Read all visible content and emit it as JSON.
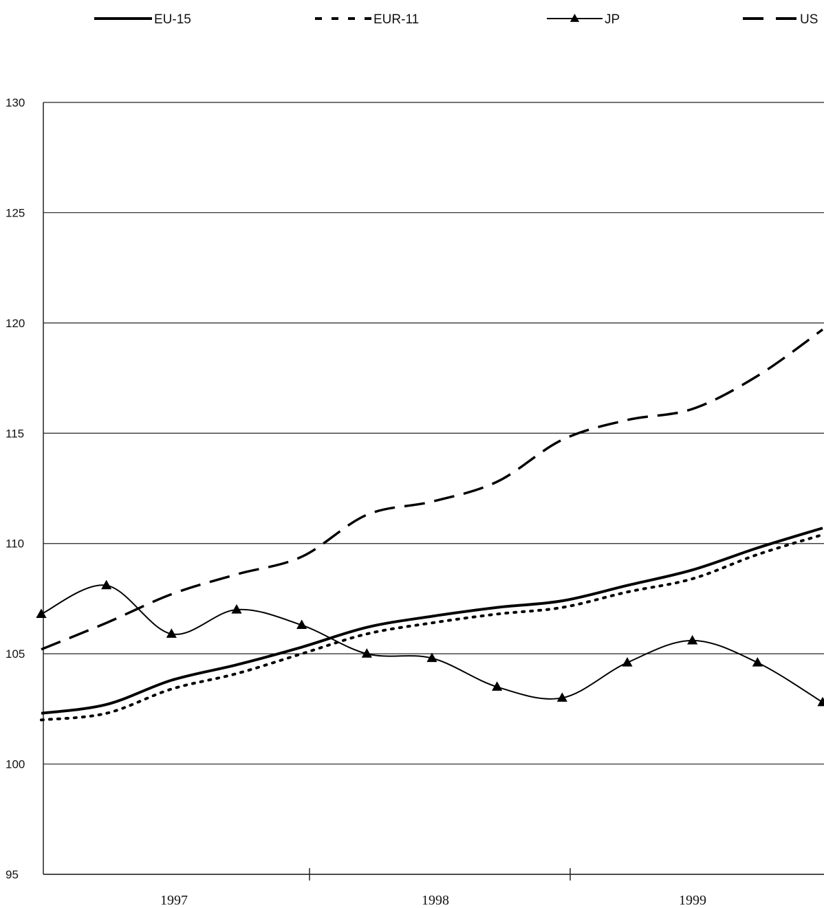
{
  "chart_data": {
    "type": "line",
    "title": "",
    "xlabel": "",
    "ylabel": "",
    "ylim": [
      95,
      130
    ],
    "yticks": [
      95,
      100,
      105,
      110,
      115,
      120,
      125,
      130
    ],
    "grid": true,
    "legend_position": "top",
    "x_tick_labels": [
      "1997",
      "1998",
      "1999"
    ],
    "x": [
      0,
      1,
      2,
      3,
      4,
      5,
      6,
      7,
      8,
      9,
      10,
      11,
      12
    ],
    "series": [
      {
        "name": "EU-15",
        "style": "solid",
        "color": "#000000",
        "values": [
          102.3,
          102.7,
          103.8,
          104.5,
          105.3,
          106.2,
          106.7,
          107.1,
          107.4,
          108.1,
          108.8,
          109.8,
          110.7
        ]
      },
      {
        "name": "EUR-11",
        "style": "dotted",
        "color": "#000000",
        "values": [
          102.0,
          102.3,
          103.4,
          104.1,
          105.0,
          105.9,
          106.4,
          106.8,
          107.1,
          107.8,
          108.4,
          109.5,
          110.4
        ]
      },
      {
        "name": "JP",
        "style": "solid-triangle",
        "color": "#000000",
        "values": [
          106.8,
          108.1,
          105.9,
          107.0,
          106.3,
          105.0,
          104.8,
          103.5,
          103.0,
          104.6,
          105.6,
          104.6,
          102.8
        ]
      },
      {
        "name": "US",
        "style": "dashed",
        "color": "#000000",
        "values": [
          105.2,
          106.4,
          107.7,
          108.6,
          109.4,
          111.3,
          111.9,
          112.8,
          114.7,
          115.6,
          116.1,
          117.6,
          119.7
        ]
      }
    ]
  }
}
